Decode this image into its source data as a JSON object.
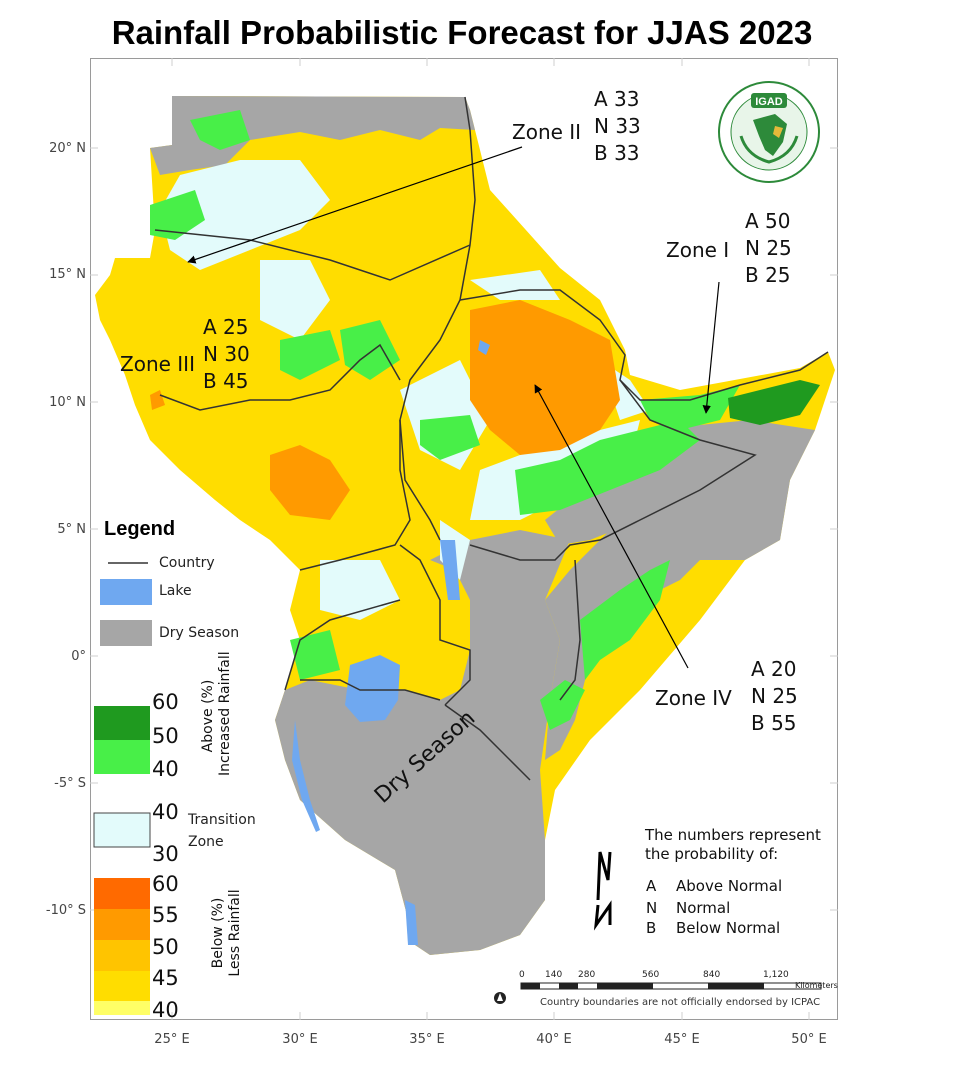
{
  "title": "Rainfall Probabilistic Forecast for JJAS 2023",
  "axes": {
    "lat_ticks": [
      "20° N",
      "15° N",
      "10° N",
      "5° N",
      "0°",
      "-5° S",
      "-10° S"
    ],
    "lon_ticks": [
      "25° E",
      "30° E",
      "35° E",
      "40° E",
      "45° E",
      "50° E"
    ]
  },
  "zones": [
    {
      "name": "Zone I",
      "A": "A 50",
      "N": "N 25",
      "B": "B 25"
    },
    {
      "name": "Zone II",
      "A": "A 33",
      "N": "N 33",
      "B": "B 33"
    },
    {
      "name": "Zone III",
      "A": "A 25",
      "N": "N 30",
      "B": "B 45"
    },
    {
      "name": "Zone IV",
      "A": "A 20",
      "N": "N 25",
      "B": "B 55"
    }
  ],
  "map_label": "Dry Season",
  "logo": {
    "text": "IGAD",
    "ring_text": "INTERGOVERNMENTAL AUTHORITY ON DEVELOPMENT"
  },
  "legend": {
    "title": "Legend",
    "country": "Country",
    "lake": "Lake",
    "dry_season": "Dry Season",
    "above_label_1": "Above (%)",
    "above_label_2": "Increased Rainfall",
    "above_values": [
      "60",
      "50",
      "40"
    ],
    "transition_values": [
      "40",
      "30"
    ],
    "transition_label_1": "Transition",
    "transition_label_2": "Zone",
    "below_label_1": "Below (%)",
    "below_label_2": "Less Rainfall",
    "below_values": [
      "60",
      "55",
      "50",
      "45",
      "40"
    ]
  },
  "note": {
    "line1": "The numbers represent",
    "line2": "the probability of:",
    "keys": [
      {
        "letter": "A",
        "text": "Above Normal"
      },
      {
        "letter": "N",
        "text": "Normal"
      },
      {
        "letter": "B",
        "text": "Below Normal"
      }
    ]
  },
  "scale": {
    "ticks": [
      "0",
      "140",
      "280",
      "560",
      "840",
      "1,120"
    ],
    "unit": "Kilometers"
  },
  "credit": "Country boundaries are not officially endorsed by ICPAC",
  "colors": {
    "above_60": "#1f9a1f",
    "above_50": "#3ad63a",
    "above_40": "#48ef48",
    "transition": "#e3fbfb",
    "below_60": "#ff6a00",
    "below_55": "#ff9a00",
    "below_50": "#ffc400",
    "below_45": "#ffdd00",
    "below_40": "#ffff66",
    "dry": "#a6a6a6",
    "lake": "#6fa8f0"
  }
}
